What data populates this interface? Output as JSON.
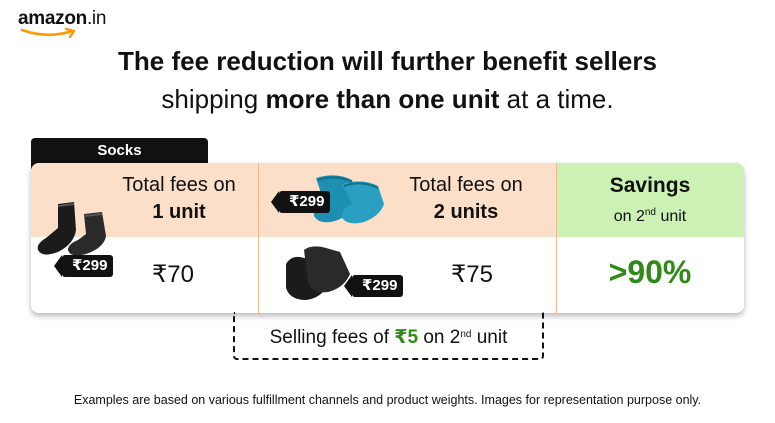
{
  "brand": {
    "name": "amazon",
    "tld": ".in"
  },
  "headline": {
    "line1": "The fee reduction will further benefit sellers",
    "line2_prefix": "shipping ",
    "line2_bold": "more than one unit",
    "line2_suffix": " at a time."
  },
  "category_tab": "Socks",
  "columns": [
    {
      "title": "Total fees on",
      "subtitle": "1 unit",
      "fee": "₹70",
      "price_tag": "₹299"
    },
    {
      "title": "Total fees on",
      "subtitle": "2 units",
      "fee": "₹75",
      "price_tags": [
        "₹299",
        "₹299"
      ]
    },
    {
      "title": "Savings",
      "subtitle_prefix": "on 2",
      "subtitle_sup": "nd",
      "subtitle_suffix": " unit",
      "value": ">90%"
    }
  ],
  "selling_fees": {
    "prefix": "Selling fees of ",
    "amount": "₹5",
    "middle": " on 2",
    "sup": "nd",
    "suffix": " unit"
  },
  "footnote": "Examples are based on various fulfillment channels and product weights. Images for representation purpose only.",
  "colors": {
    "fee_header_bg": "#fcdfc9",
    "savings_header_bg": "#ccf1b5",
    "savings_text": "#2f8a18",
    "tab_bg": "#111111",
    "logo_smile": "#ff9900"
  },
  "icons": [
    "amazon-smile-icon",
    "black-socks-image",
    "teal-socks-image",
    "price-tag-icon"
  ]
}
